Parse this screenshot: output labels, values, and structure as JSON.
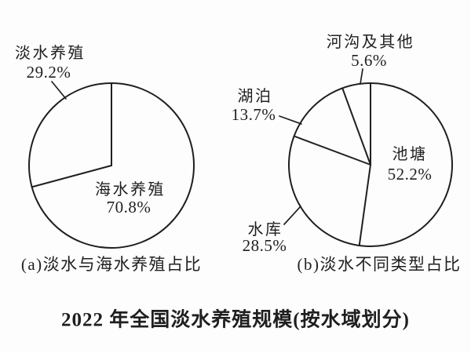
{
  "figure_title": "2022 年全国淡水养殖规模(按水域划分)",
  "ink_color": "#1f1f1f",
  "background_color": "#fdfdfd",
  "chart_data": [
    {
      "type": "pie",
      "title": "(a)淡水与海水养殖占比",
      "style": "outline-only, no fill, black strokes, starts at 12 o'clock clockwise",
      "slices": [
        {
          "label": "海水养殖",
          "value_pct": 70.8,
          "pct_text": "70.8%",
          "label_position": "inside-lower-right"
        },
        {
          "label": "淡水养殖",
          "value_pct": 29.2,
          "pct_text": "29.2%",
          "label_position": "outside-top-left",
          "leader_line": true
        }
      ]
    },
    {
      "type": "pie",
      "title": "(b)淡水不同类型占比",
      "style": "outline-only, no fill, black strokes, starts at 12 o'clock clockwise",
      "slices": [
        {
          "label": "池塘",
          "value_pct": 52.2,
          "pct_text": "52.2%",
          "label_position": "inside-right"
        },
        {
          "label": "水库",
          "value_pct": 28.5,
          "pct_text": "28.5%",
          "label_position": "outside-lower-left",
          "leader_line": true
        },
        {
          "label": "湖泊",
          "value_pct": 13.7,
          "pct_text": "13.7%",
          "label_position": "outside-left",
          "leader_line": true
        },
        {
          "label": "河沟及其他",
          "value_pct": 5.6,
          "pct_text": "5.6%",
          "label_position": "outside-top",
          "leader_line": true
        }
      ]
    }
  ]
}
